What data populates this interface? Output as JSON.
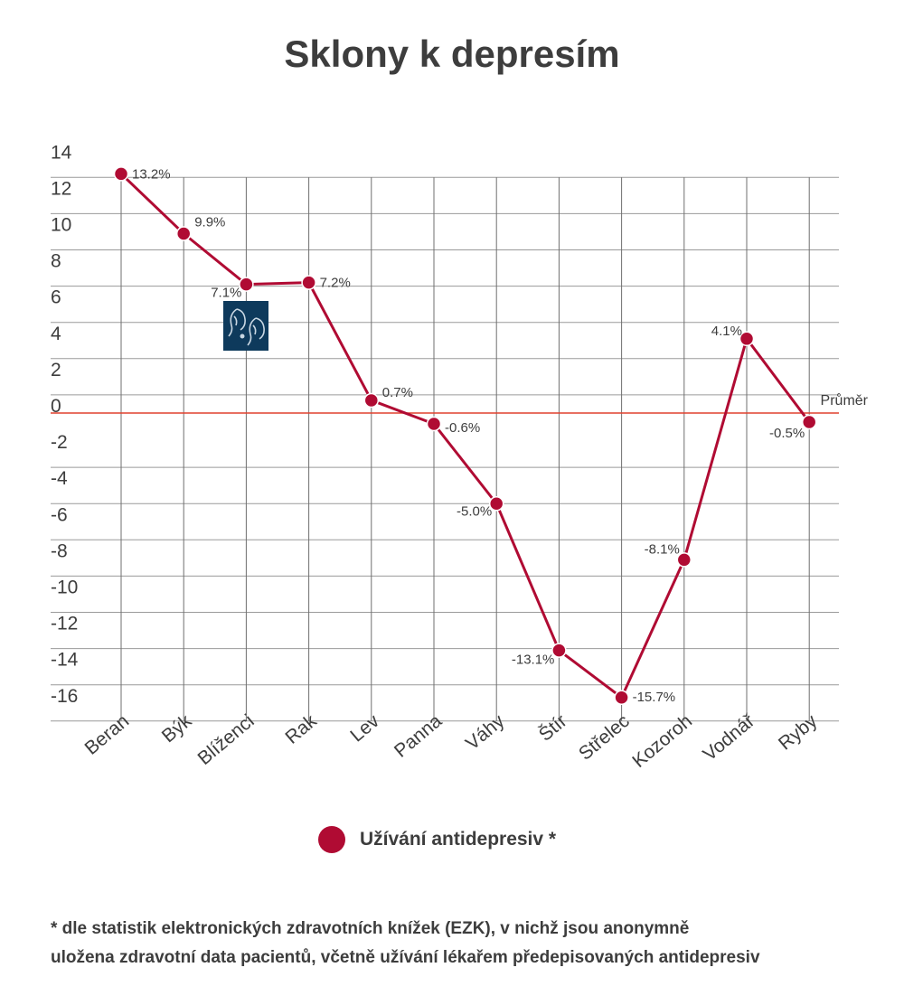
{
  "chart_data": {
    "type": "line",
    "title": "Sklony k depresím",
    "categories": [
      "Beran",
      "Býk",
      "Blíženci",
      "Rak",
      "Lev",
      "Panna",
      "Váhy",
      "Štír",
      "Střelec",
      "Kozoroh",
      "Vodnář",
      "Ryby"
    ],
    "series": [
      {
        "name": "Užívání antidepresiv *",
        "values": [
          13.2,
          9.9,
          7.1,
          7.2,
          0.7,
          -0.6,
          -5.0,
          -13.1,
          -15.7,
          -8.1,
          4.1,
          -0.5
        ],
        "labels": [
          "13.2%",
          "9.9%",
          "7.1%",
          "7.2%",
          "0.7%",
          "-0.6%",
          "-5.0%",
          "-13.1%",
          "-15.7%",
          "-8.1%",
          "4.1%",
          "-0.5%"
        ],
        "color": "#b00b33"
      }
    ],
    "y_ticks": [
      "14",
      "12",
      "10",
      "8",
      "6",
      "4",
      "2",
      "0",
      "-2",
      "-4",
      "-6",
      "-8",
      "-10",
      "-12",
      "-14",
      "-16"
    ],
    "ylim": [
      -16,
      14
    ],
    "grid": true,
    "reference_line": {
      "value": 0,
      "label": "Průměr",
      "color": "#e0412e"
    },
    "legend_position": "bottom"
  },
  "footnote": [
    "* dle statistik elektronických zdravotních knížek (EZK), v nichž jsou anonymně",
    "uložena zdravotní data pacientů, včetně užívání lékařem předepisovaných antidepresiv"
  ],
  "icons": [
    "gemini-zodiac-icon"
  ]
}
